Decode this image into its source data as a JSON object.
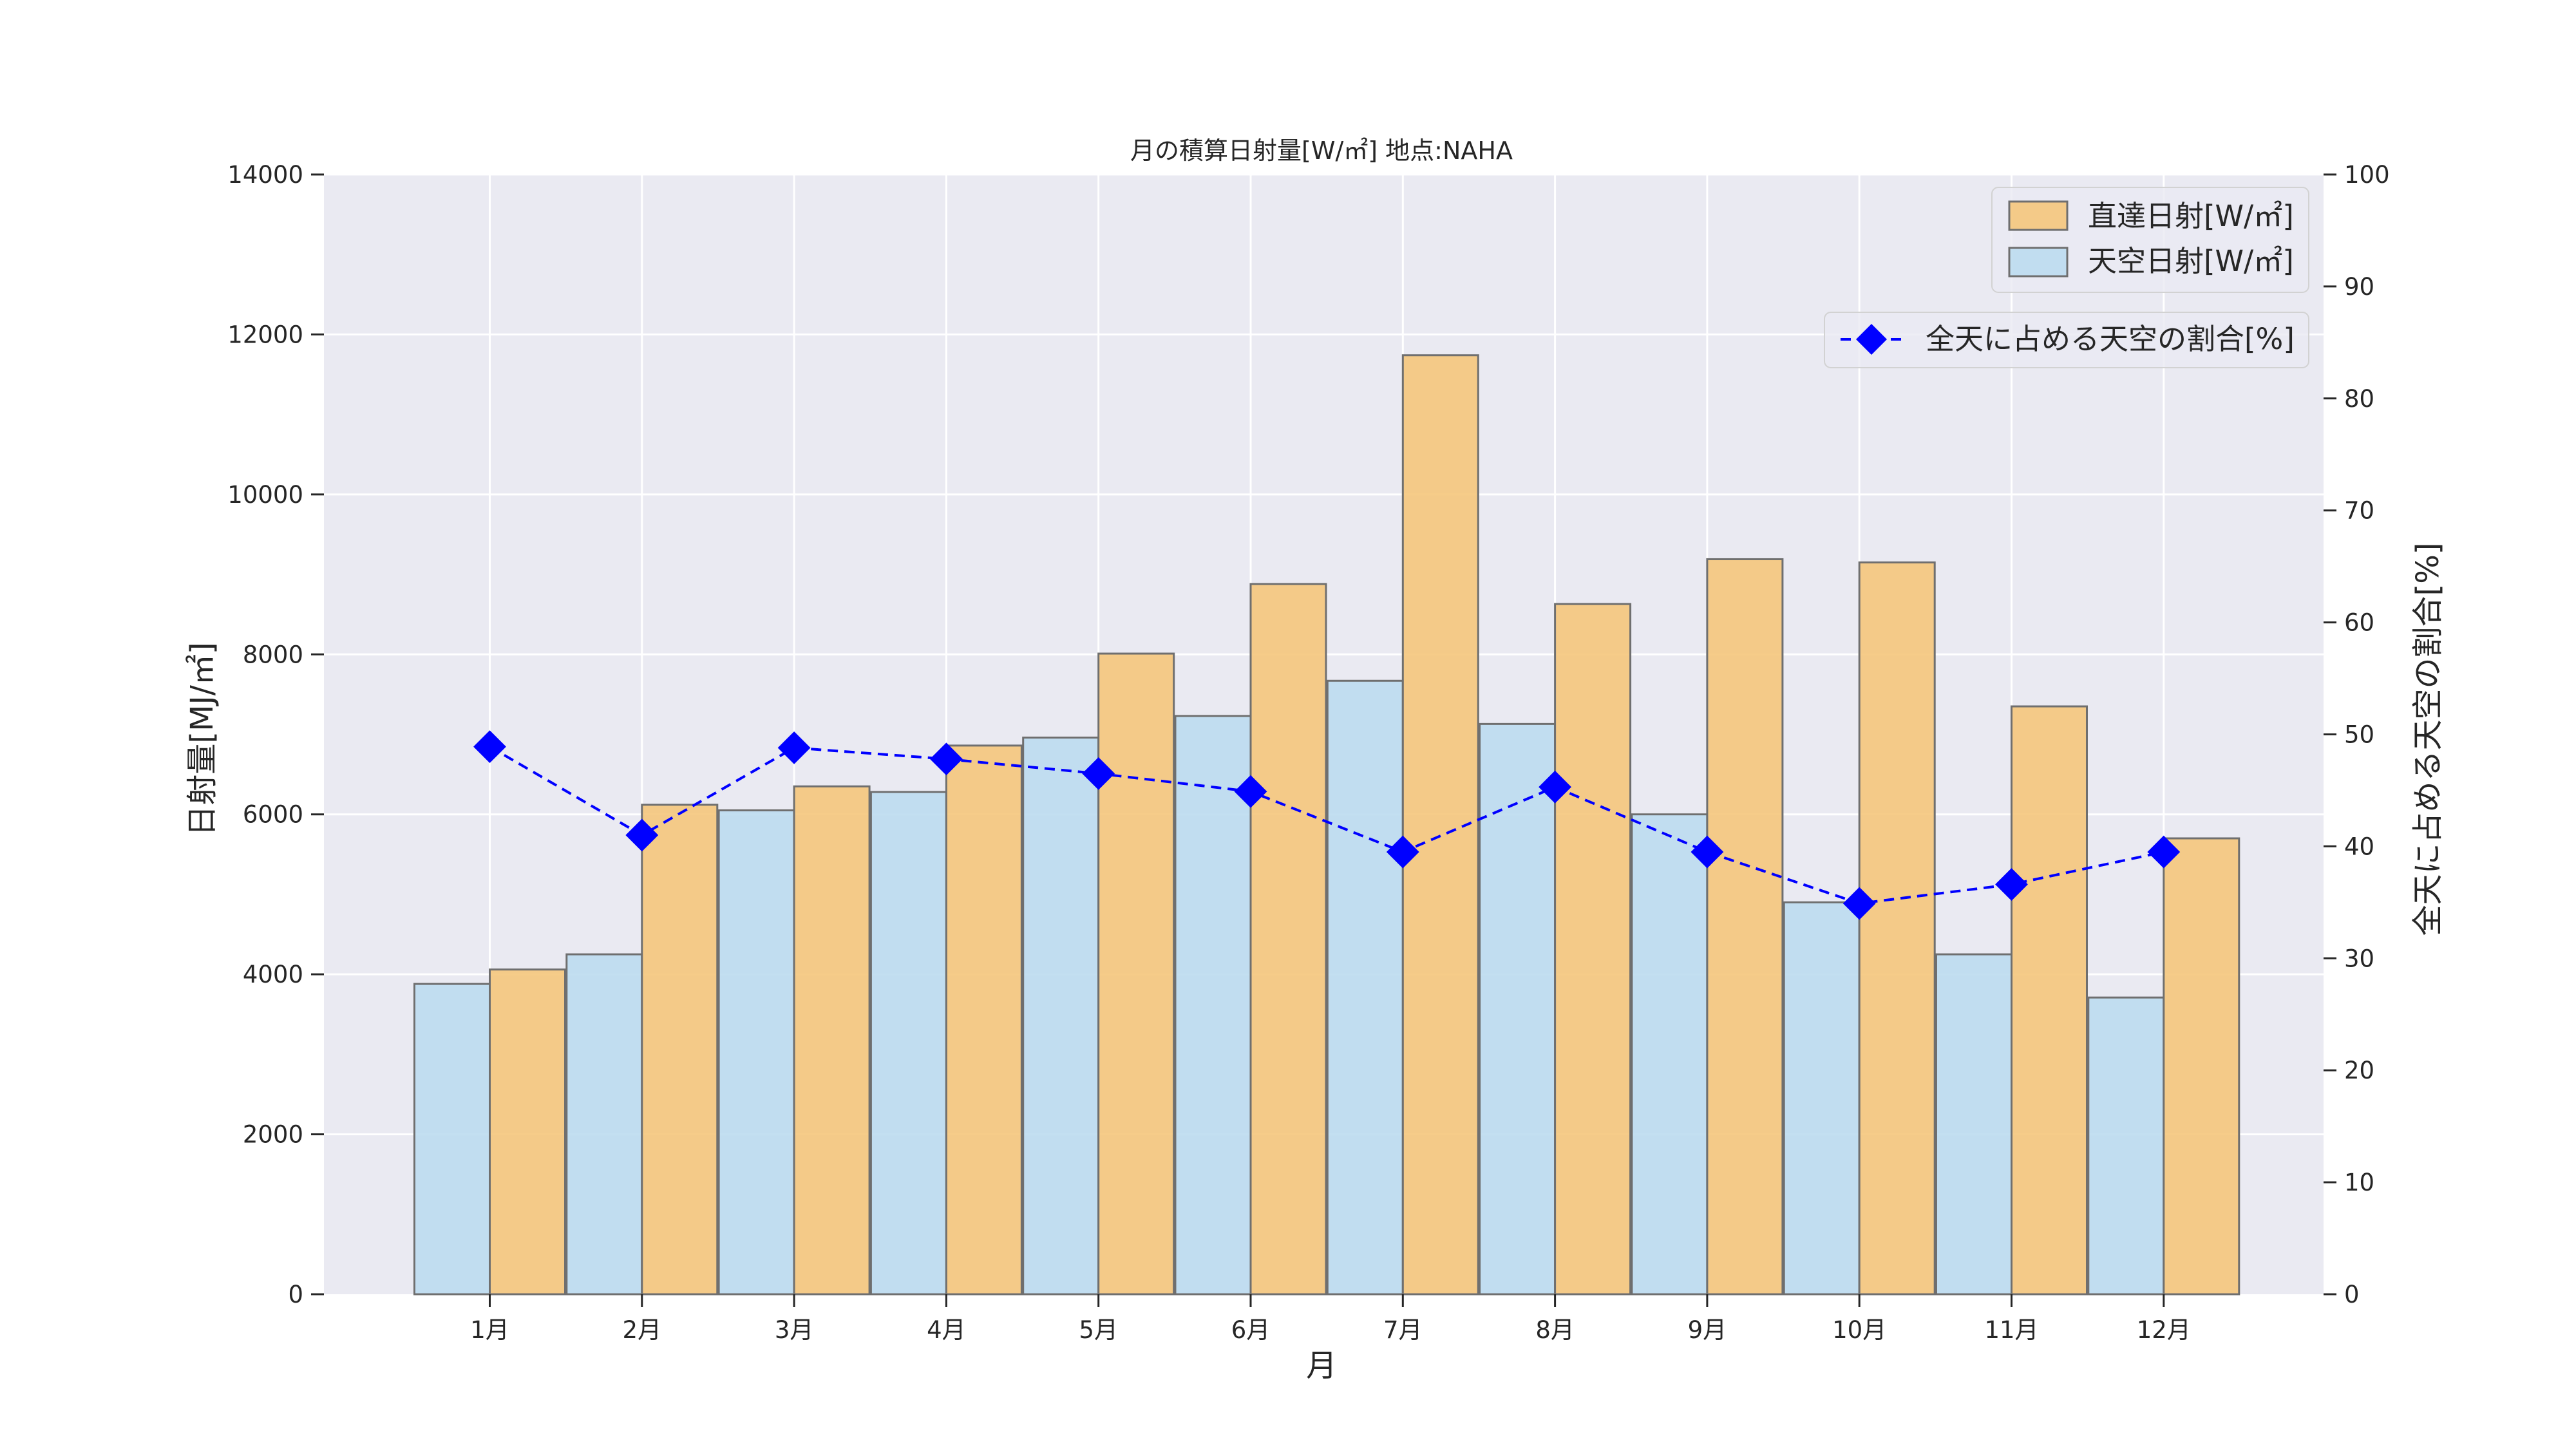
{
  "chart_data": {
    "type": "bar",
    "title": "月の積算日射量[W/㎡] 地点:NAHA",
    "xlabel": "月",
    "ylabel": "日射量[MJ/㎡]",
    "y2label": "全天に占める天空の割合[%]",
    "categories": [
      "1月",
      "2月",
      "3月",
      "4月",
      "5月",
      "6月",
      "7月",
      "8月",
      "9月",
      "10月",
      "11月",
      "12月"
    ],
    "ylim": [
      0,
      14000
    ],
    "yticks": [
      0,
      2000,
      4000,
      6000,
      8000,
      10000,
      12000,
      14000
    ],
    "y2lim": [
      0,
      100
    ],
    "y2ticks": [
      0,
      10,
      20,
      30,
      40,
      50,
      60,
      70,
      80,
      90,
      100
    ],
    "grid": true,
    "series": [
      {
        "name": "直達日射[W/㎡]",
        "type": "bar",
        "axis": "left",
        "color": "#f5c67c",
        "values": [
          4060,
          6120,
          6350,
          6860,
          8010,
          8880,
          11740,
          8630,
          9190,
          9150,
          7350,
          5700
        ]
      },
      {
        "name": "天空日射[W/㎡]",
        "type": "bar",
        "axis": "left",
        "color": "#bcdcf0",
        "values": [
          3880,
          4250,
          6050,
          6280,
          6960,
          7230,
          7670,
          7130,
          6000,
          4900,
          4250,
          3710
        ]
      },
      {
        "name": "全天に占める天空の割合[%]",
        "type": "line",
        "axis": "right",
        "color": "#0000ff",
        "marker": "diamond",
        "linestyle": "dashed",
        "values": [
          48.9,
          41.0,
          48.8,
          47.8,
          46.5,
          44.9,
          39.5,
          45.3,
          39.5,
          34.9,
          36.6,
          39.5
        ]
      }
    ],
    "legend_bars": "top-right",
    "legend_line": "top-right"
  }
}
